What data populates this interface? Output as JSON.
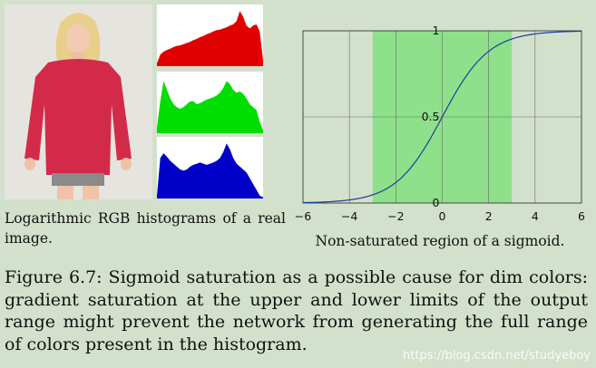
{
  "left_caption": "Logarithmic RGB histograms of a real image.",
  "right_caption": "Non-saturated region of a sigmoid.",
  "figure_caption": "Figure 6.7: Sigmoid saturation as a possible cause for dim colors: gradient saturation at the upper and lower limits of the output range might prevent the network from generating the full range of colors present in the histogram.",
  "watermark": "https://blog.csdn.net/studyeboy",
  "colors": {
    "background": "#d3e0cb",
    "red": "#e00000",
    "green": "#00dd00",
    "blue": "#0000c8",
    "band": "#8fe08a",
    "curve": "#1f3fa0",
    "dress": "#d42a4a"
  },
  "icons": [
    "photo-woman-red-sweater"
  ],
  "chart_data": [
    {
      "type": "area",
      "series": [
        {
          "name": "",
          "color": "#e00000",
          "values": [
            0.05,
            0.2,
            0.25,
            0.28,
            0.3,
            0.33,
            0.35,
            0.36,
            0.38,
            0.4,
            0.42,
            0.45,
            0.47,
            0.5,
            0.52,
            0.55,
            0.57,
            0.6,
            0.62,
            0.63,
            0.65,
            0.67,
            0.7,
            0.72,
            0.78,
            0.95,
            0.85,
            0.7,
            0.65,
            0.7,
            0.72,
            0.6,
            0.1
          ]
        },
        {
          "name": "",
          "color": "#00dd00",
          "values": [
            0.1,
            0.55,
            0.9,
            0.75,
            0.6,
            0.5,
            0.45,
            0.42,
            0.45,
            0.5,
            0.55,
            0.55,
            0.5,
            0.52,
            0.55,
            0.58,
            0.6,
            0.62,
            0.65,
            0.7,
            0.78,
            0.9,
            0.85,
            0.75,
            0.7,
            0.72,
            0.68,
            0.6,
            0.5,
            0.45,
            0.4,
            0.2,
            0.05
          ]
        },
        {
          "name": "",
          "color": "#0000c8",
          "values": [
            0.05,
            0.7,
            0.78,
            0.72,
            0.65,
            0.6,
            0.55,
            0.5,
            0.48,
            0.5,
            0.55,
            0.58,
            0.6,
            0.62,
            0.6,
            0.58,
            0.6,
            0.62,
            0.65,
            0.7,
            0.8,
            0.95,
            0.85,
            0.7,
            0.6,
            0.55,
            0.5,
            0.45,
            0.35,
            0.25,
            0.15,
            0.05,
            0.02
          ]
        }
      ]
    },
    {
      "type": "line",
      "function": "sigmoid",
      "x": [
        -6,
        -5,
        -4,
        -3,
        -2,
        -1,
        0,
        1,
        2,
        3,
        4,
        5,
        6
      ],
      "y": [
        0.0025,
        0.0067,
        0.018,
        0.047,
        0.119,
        0.269,
        0.5,
        0.731,
        0.881,
        0.953,
        0.982,
        0.993,
        0.9975
      ],
      "xlim": [
        -6,
        6
      ],
      "ylim": [
        0,
        1
      ],
      "x_ticks": [
        "−6",
        "−4",
        "−2",
        "0",
        "2",
        "4",
        "6"
      ],
      "y_ticks": [
        "0",
        "0.5",
        "1"
      ],
      "highlight_band": [
        -3,
        3
      ],
      "grid": true
    }
  ]
}
